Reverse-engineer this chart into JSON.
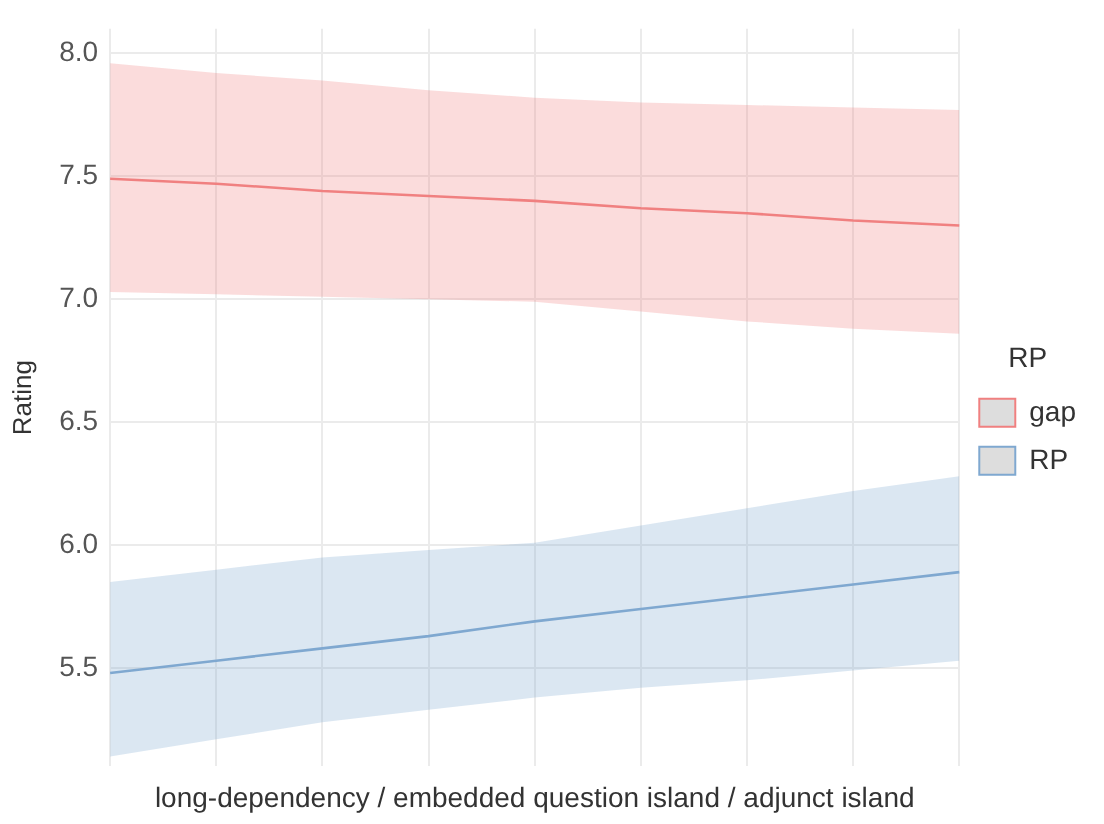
{
  "chart_data": {
    "type": "line",
    "xlabel": "long-dependency / embedded question island / adjunct island",
    "ylabel": "Rating",
    "legend_title": "RP",
    "categories": [
      null,
      null,
      null,
      null,
      null,
      null,
      null,
      null,
      null
    ],
    "series": [
      {
        "name": "gap",
        "color": "#f08080",
        "values": [
          7.49,
          7.47,
          7.44,
          7.42,
          7.4,
          7.37,
          7.35,
          7.32,
          7.3
        ],
        "lower": [
          7.03,
          7.02,
          7.01,
          7.0,
          6.99,
          6.95,
          6.91,
          6.88,
          6.86
        ],
        "upper": [
          7.96,
          7.92,
          7.89,
          7.85,
          7.82,
          7.8,
          7.79,
          7.78,
          7.77
        ]
      },
      {
        "name": "RP",
        "color": "#7fa8d0",
        "values": [
          5.48,
          5.53,
          5.58,
          5.63,
          5.69,
          5.74,
          5.79,
          5.84,
          5.89
        ],
        "lower": [
          5.14,
          5.21,
          5.28,
          5.33,
          5.38,
          5.42,
          5.45,
          5.49,
          5.53
        ],
        "upper": [
          5.85,
          5.9,
          5.95,
          5.98,
          6.01,
          6.08,
          6.15,
          6.22,
          6.28
        ]
      }
    ],
    "ylim": [
      5.1,
      8.1
    ],
    "yticks": [
      5.5,
      {
        "value": 6,
        "label": "6.0"
      },
      6.5,
      {
        "value": 7,
        "label": "7.0"
      },
      7.5,
      {
        "value": 8,
        "label": "8.0"
      }
    ],
    "grid": true,
    "legend": "right",
    "marker": "none",
    "line_style": "solid",
    "tick_labels": "y"
  }
}
